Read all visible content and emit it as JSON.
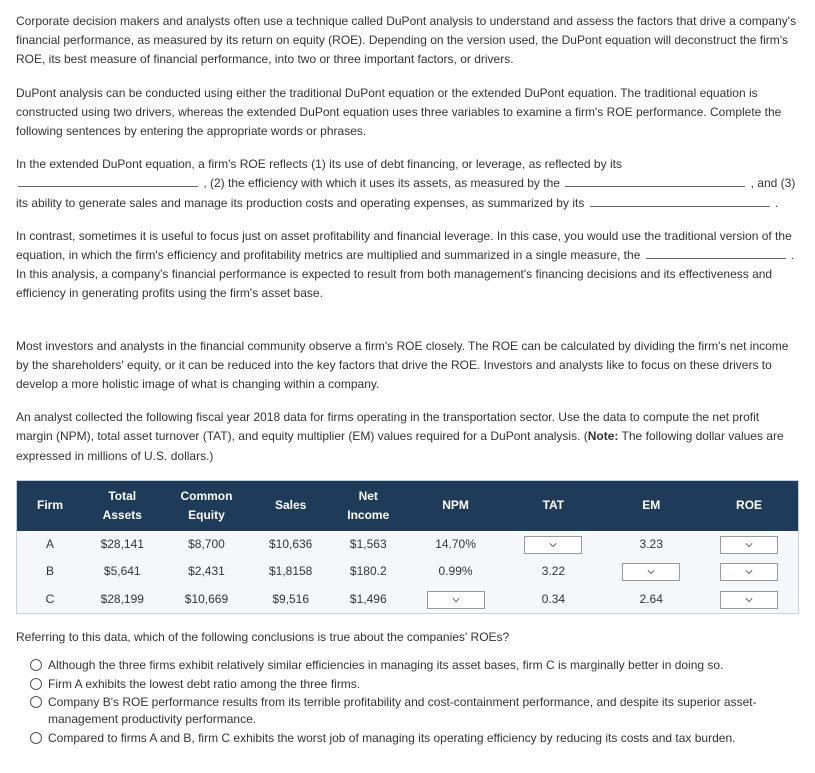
{
  "paragraphs": {
    "p1": "Corporate decision makers and analysts often use a technique called DuPont analysis to understand and assess the factors that drive a company's financial performance, as measured by its return on equity (ROE). Depending on the version used, the DuPont equation will deconstruct the firm's ROE, its best measure of financial performance, into two or three important factors, or drivers.",
    "p2": "DuPont analysis can be conducted using either the traditional DuPont equation or the extended DuPont equation. The traditional equation is constructed using two drivers, whereas the extended DuPont equation uses three variables to examine a firm's ROE performance. Complete the following sentences by entering the appropriate words or phrases.",
    "p3a": "In the extended DuPont equation, a firm's ROE reflects (1) its use of debt financing, or leverage, as reflected by its ",
    "p3b": " , (2) the efficiency with which it uses its assets, as measured by the ",
    "p3c": " , and (3) its ability to generate sales and manage its production costs and operating expenses, as summarized by its ",
    "p3d": " .",
    "p4a": "In contrast, sometimes it is useful to focus just on asset profitability and financial leverage. In this case, you would use the traditional version of the equation, in which the firm's efficiency and profitability metrics are multiplied and summarized in a single measure, the ",
    "p4b": " . In this analysis, a company's financial performance is expected to result from both management's financing decisions and its effectiveness and efficiency in generating profits using the firm's asset base.",
    "p5": "Most investors and analysts in the financial community observe a firm's ROE closely. The ROE can be calculated by dividing the firm's net income by the shareholders' equity, or it can be reduced into the key factors that drive the ROE. Investors and analysts like to focus on these drivers to develop a more holistic image of what is changing within a company.",
    "p6": "An analyst collected the following fiscal year 2018 data for firms operating in the transportation sector. Use the data to compute the net profit margin (NPM), total asset turnover (TAT), and equity multiplier (EM) values required for a DuPont analysis. (Note: The following dollar values are expressed in millions of U.S. dollars.)",
    "question": "Referring to this data, which of the following conclusions is true about the companies' ROEs?"
  },
  "note_bold": "Note:",
  "table": {
    "headers": {
      "firm": "Firm",
      "total_assets_l1": "Total",
      "total_assets_l2": "Assets",
      "common_equity_l1": "Common",
      "common_equity_l2": "Equity",
      "sales": "Sales",
      "net_income_l1": "Net",
      "net_income_l2": "Income",
      "npm": "NPM",
      "tat": "TAT",
      "em": "EM",
      "roe": "ROE"
    },
    "rows": [
      {
        "firm": "A",
        "assets": "$28,141",
        "equity": "$8,700",
        "sales": "$10,636",
        "income": "$1,563",
        "npm": "14.70%",
        "tat": "",
        "em": "3.23",
        "roe": ""
      },
      {
        "firm": "B",
        "assets": "$5,641",
        "equity": "$2,431",
        "sales": "$1,8158",
        "income": "$180.2",
        "npm": "0.99%",
        "tat": "3.22",
        "em": "",
        "roe": ""
      },
      {
        "firm": "C",
        "assets": "$28,199",
        "equity": "$10,669",
        "sales": "$9,516",
        "income": "$1,496",
        "npm": "",
        "tat": "0.34",
        "em": "2.64",
        "roe": ""
      }
    ]
  },
  "options": [
    "Although the three firms exhibit relatively similar efficiencies in managing its asset bases, firm C is marginally better in doing so.",
    "Firm A exhibits the lowest debt ratio among the three firms.",
    "Company B's ROE performance results from its terrible profitability and cost-containment performance, and despite its superior asset-management productivity performance.",
    "Compared to firms A and B, firm C exhibits the worst job of managing its operating efficiency by reducing its costs and tax burden."
  ]
}
